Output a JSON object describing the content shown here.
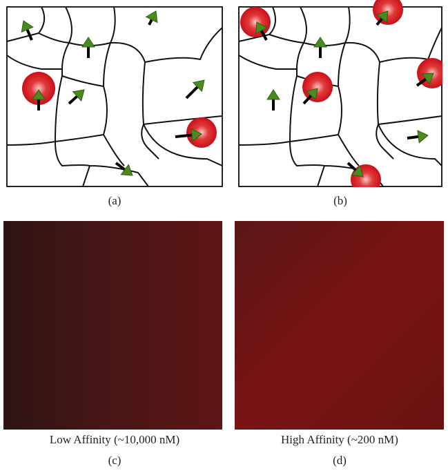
{
  "panels": [
    {
      "label": "(a)"
    },
    {
      "label": "(b)"
    },
    {
      "label": "(c)",
      "caption": "Low Affinity (~10,000 nM)"
    },
    {
      "label": "(d)",
      "caption": "High Affinity (~200 nM)"
    }
  ]
}
